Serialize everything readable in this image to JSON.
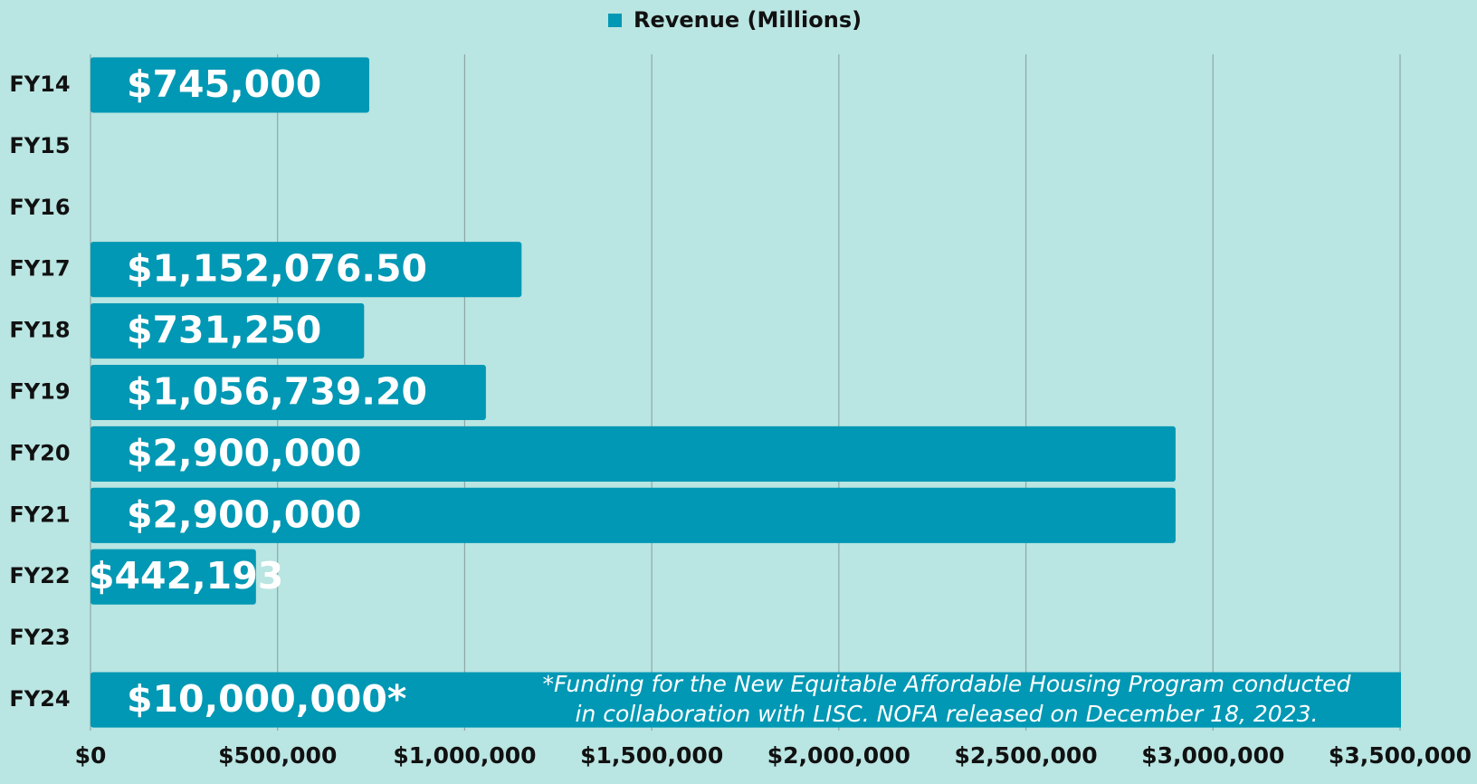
{
  "chart_data": {
    "type": "bar",
    "orientation": "horizontal",
    "legend": "top",
    "categories": [
      "FY14",
      "FY15",
      "FY16",
      "FY17",
      "FY18",
      "FY19",
      "FY20",
      "FY21",
      "FY22",
      "FY23",
      "FY24"
    ],
    "series": [
      {
        "name": "Revenue (Millions)",
        "color": "#0098b4",
        "values": [
          745000,
          null,
          null,
          1152076.5,
          731250,
          1056739.2,
          2900000,
          2900000,
          442193,
          null,
          10000000
        ],
        "value_labels": [
          "$745,000",
          null,
          null,
          "$1,152,076.50",
          "$731,250",
          "$1,056,739.20",
          "$2,900,000",
          "$2,900,000",
          "$442,193",
          null,
          "$10,000,000*"
        ]
      }
    ],
    "xlim": [
      0,
      3500000
    ],
    "xticks": [
      {
        "value": 0,
        "label": "$0"
      },
      {
        "value": 500000,
        "label": "$500,000"
      },
      {
        "value": 1000000,
        "label": "$1,000,000"
      },
      {
        "value": 1500000,
        "label": "$1,500,000"
      },
      {
        "value": 2000000,
        "label": "$2,000,000"
      },
      {
        "value": 2500000,
        "label": "$2,500,000"
      },
      {
        "value": 3000000,
        "label": "$3,000,000"
      },
      {
        "value": 3500000,
        "label": "$3,500,000"
      }
    ],
    "grid": true,
    "annotation": [
      "*Funding for the New Equitable Affordable Housing Program conducted",
      "in collaboration with LISC. NOFA released on December 18, 2023."
    ]
  }
}
